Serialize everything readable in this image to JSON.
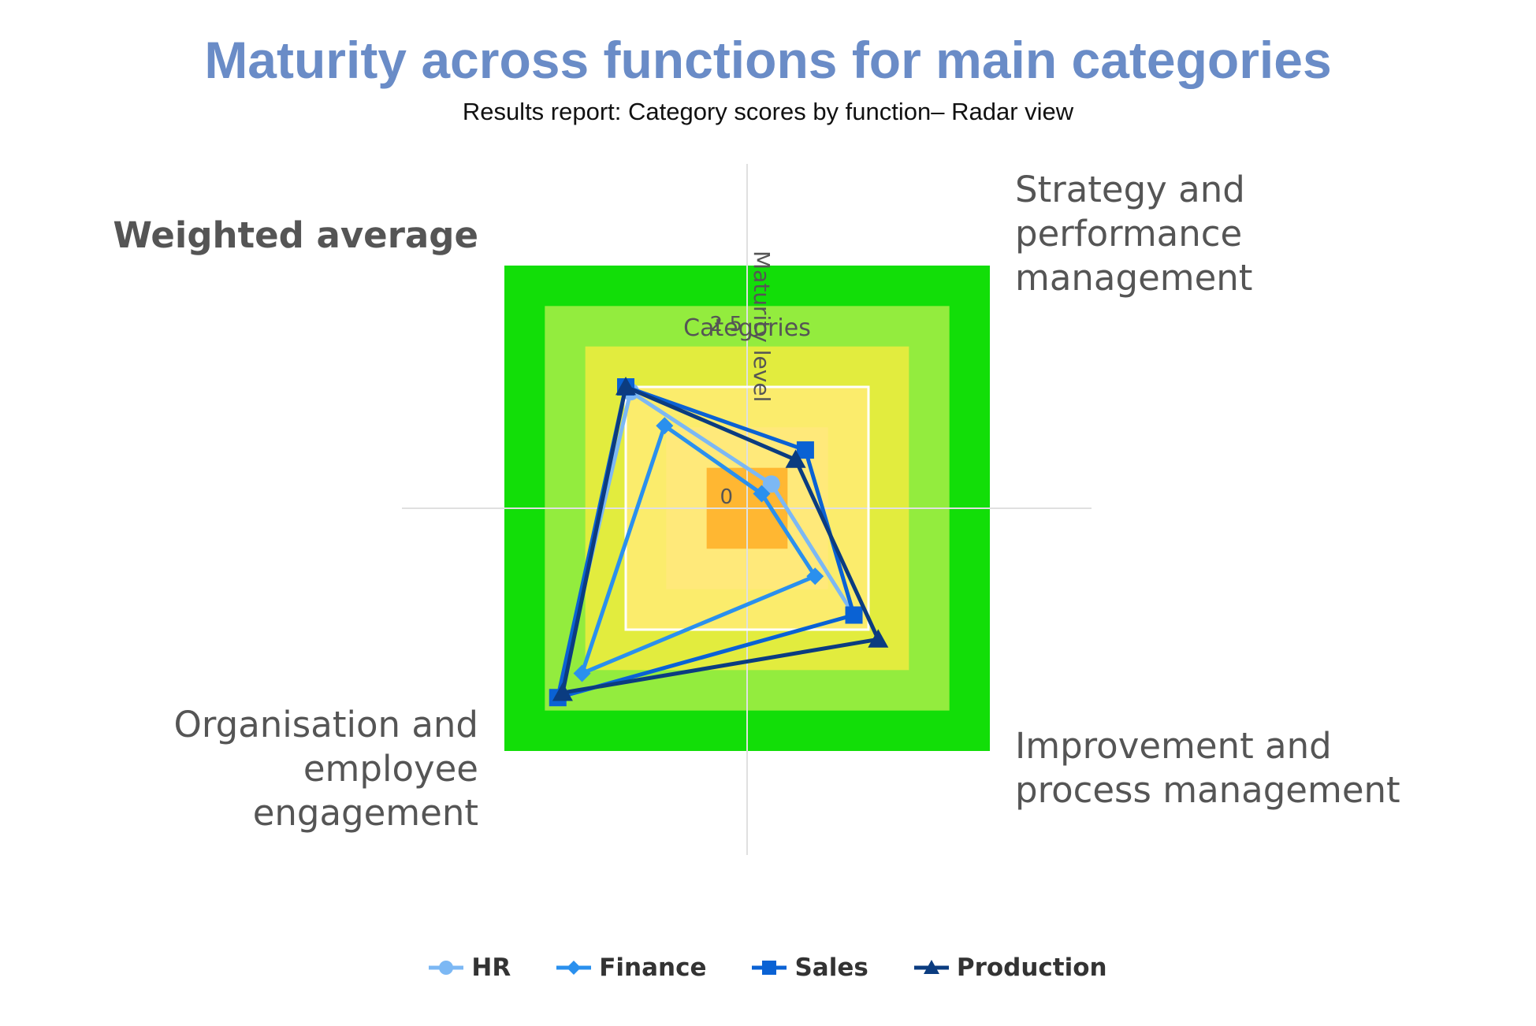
{
  "title": "Maturity across functions for main categories",
  "subtitle": "Results report: Category scores by function– Radar view",
  "chart_data": {
    "type": "radar",
    "title": "Maturity across functions for main categories",
    "subtitle": "Results report: Category scores by function– Radar view",
    "categories": [
      "Weighted average",
      "Strategy and performance management",
      "Improvement and process management",
      "Organisation and employee engagement"
    ],
    "category_label_lines": [
      [
        "Weighted average"
      ],
      [
        "Strategy and",
        "performance",
        "management"
      ],
      [
        "Improvement and",
        "process management"
      ],
      [
        "Organisation and",
        "employee",
        "engagement"
      ]
    ],
    "xlabel": "Categories",
    "ylabel": "Maturity level",
    "tick_labels": [
      "0",
      "2.5"
    ],
    "rmax": 5,
    "band_colors": [
      "#ffb732",
      "#ffe97a",
      "#fbec6c",
      "#e2ec3e",
      "#93ec3e",
      "#12de08"
    ],
    "series": [
      {
        "name": "HR",
        "color": "#7cb8f4",
        "marker": "circle",
        "values": [
          2.4,
          0.5,
          2.2,
          3.9
        ]
      },
      {
        "name": "Finance",
        "color": "#2a90ee",
        "marker": "diamond",
        "values": [
          1.7,
          0.3,
          1.4,
          3.4
        ]
      },
      {
        "name": "Sales",
        "color": "#0a62d4",
        "marker": "square",
        "values": [
          2.5,
          1.2,
          2.2,
          3.9
        ]
      },
      {
        "name": "Production",
        "color": "#0b3c80",
        "marker": "triangle",
        "values": [
          2.5,
          1.0,
          2.7,
          3.8
        ]
      }
    ]
  }
}
